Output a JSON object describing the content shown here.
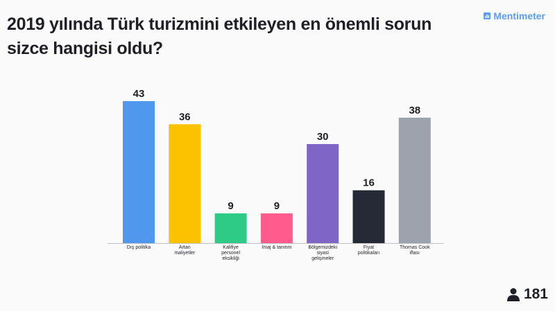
{
  "header": {
    "question_line1": "2019 yılında Türk turizmini etkileyen en önemli sorun",
    "question_line2": "sizce hangisi oldu?",
    "brand_name": "Mentimeter"
  },
  "footer": {
    "respondent_count": "181",
    "icon": "person-icon"
  },
  "chart_data": {
    "type": "bar",
    "categories": [
      [
        "Dış politika"
      ],
      [
        "Artan",
        "maliyetler"
      ],
      [
        "Kalifiye",
        "personel",
        "eksikliği"
      ],
      [
        "İmaj & tanıtım"
      ],
      [
        "Bölgemizdeki",
        "siyasi",
        "gelişmeler"
      ],
      [
        "Fiyat",
        "politikaları"
      ],
      [
        "Thomas Cook",
        "iflası"
      ]
    ],
    "values": [
      43,
      36,
      9,
      9,
      30,
      16,
      38
    ],
    "colors": [
      "#4f98ee",
      "#fcc200",
      "#2ecb86",
      "#ff5c8d",
      "#7f65c5",
      "#252a36",
      "#9da3ad"
    ],
    "ylim": [
      0,
      43
    ],
    "grid": false,
    "legend": "none"
  }
}
